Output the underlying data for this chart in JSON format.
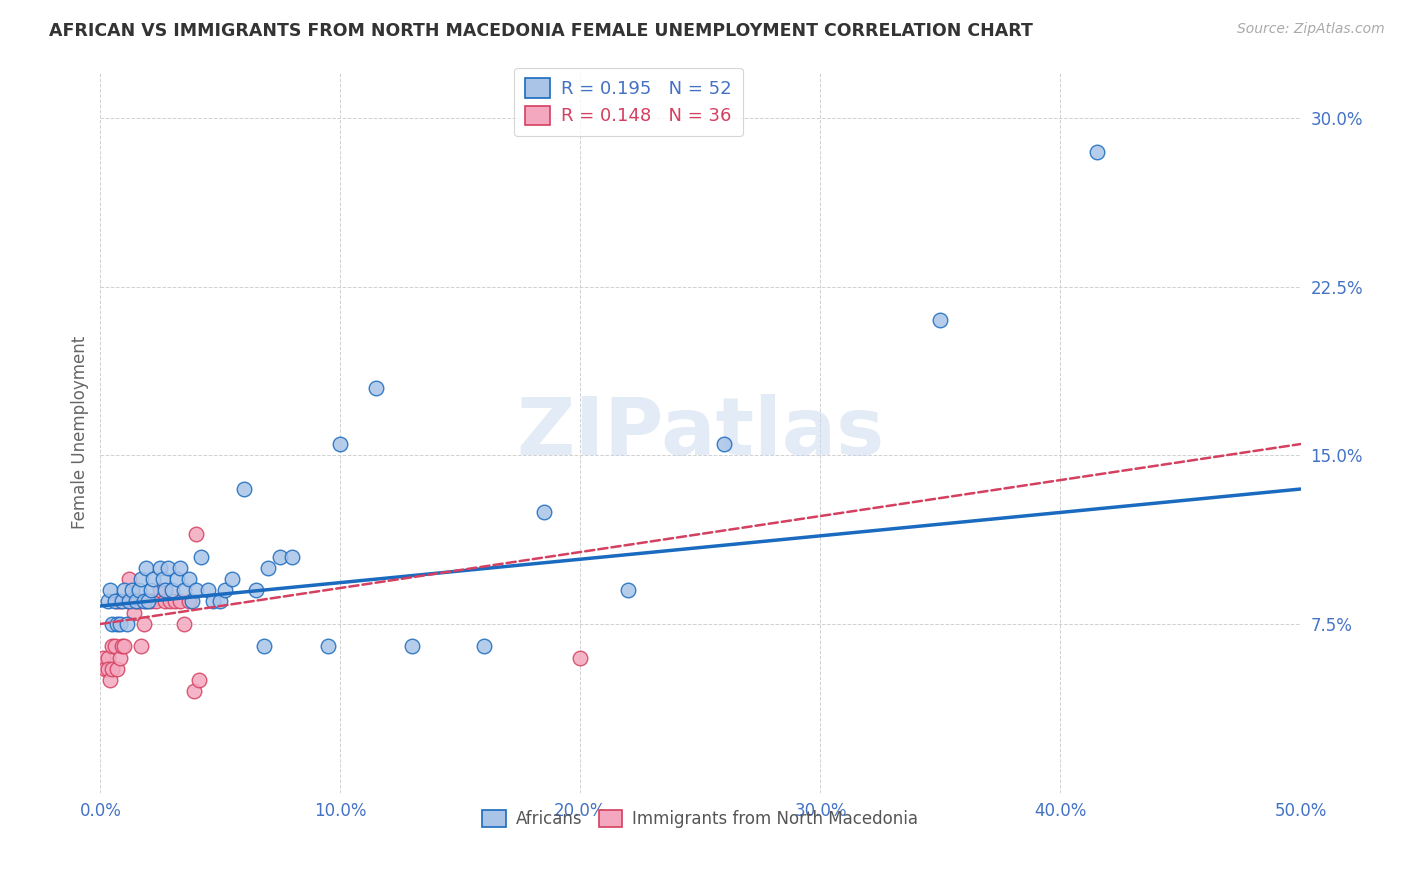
{
  "title": "AFRICAN VS IMMIGRANTS FROM NORTH MACEDONIA FEMALE UNEMPLOYMENT CORRELATION CHART",
  "source": "Source: ZipAtlas.com",
  "ylabel": "Female Unemployment",
  "xlim": [
    0.0,
    0.5
  ],
  "ylim": [
    0.0,
    0.32
  ],
  "yticks": [
    0.075,
    0.15,
    0.225,
    0.3
  ],
  "ytick_labels": [
    "7.5%",
    "15.0%",
    "22.5%",
    "30.0%"
  ],
  "xticks": [
    0.0,
    0.1,
    0.2,
    0.3,
    0.4,
    0.5
  ],
  "xtick_labels": [
    "0.0%",
    "10.0%",
    "20.0%",
    "30.0%",
    "40.0%",
    "50.0%"
  ],
  "african_color": "#aac4e8",
  "macedonian_color": "#f4a8bf",
  "trend_african_color": "#1a6bbf",
  "trend_macedonian_color": "#d44060",
  "R_african": 0.195,
  "N_african": 52,
  "R_macedonian": 0.148,
  "N_macedonian": 36,
  "background_color": "#ffffff",
  "grid_color": "#cccccc",
  "watermark": "ZIPatlas",
  "african_x": [
    0.003,
    0.004,
    0.005,
    0.006,
    0.007,
    0.008,
    0.009,
    0.01,
    0.011,
    0.012,
    0.013,
    0.015,
    0.016,
    0.017,
    0.018,
    0.019,
    0.02,
    0.021,
    0.022,
    0.025,
    0.026,
    0.027,
    0.028,
    0.03,
    0.032,
    0.033,
    0.035,
    0.037,
    0.038,
    0.04,
    0.042,
    0.045,
    0.047,
    0.05,
    0.052,
    0.055,
    0.06,
    0.065,
    0.068,
    0.07,
    0.075,
    0.08,
    0.095,
    0.1,
    0.115,
    0.13,
    0.16,
    0.185,
    0.22,
    0.26,
    0.35,
    0.415
  ],
  "african_y": [
    0.085,
    0.09,
    0.075,
    0.085,
    0.075,
    0.075,
    0.085,
    0.09,
    0.075,
    0.085,
    0.09,
    0.085,
    0.09,
    0.095,
    0.085,
    0.1,
    0.085,
    0.09,
    0.095,
    0.1,
    0.095,
    0.09,
    0.1,
    0.09,
    0.095,
    0.1,
    0.09,
    0.095,
    0.085,
    0.09,
    0.105,
    0.09,
    0.085,
    0.085,
    0.09,
    0.095,
    0.135,
    0.09,
    0.065,
    0.1,
    0.105,
    0.105,
    0.065,
    0.155,
    0.18,
    0.065,
    0.065,
    0.125,
    0.09,
    0.155,
    0.21,
    0.285
  ],
  "macedonian_x": [
    0.001,
    0.002,
    0.003,
    0.003,
    0.004,
    0.005,
    0.005,
    0.006,
    0.007,
    0.007,
    0.008,
    0.008,
    0.009,
    0.01,
    0.011,
    0.012,
    0.013,
    0.014,
    0.015,
    0.016,
    0.017,
    0.018,
    0.019,
    0.021,
    0.023,
    0.025,
    0.027,
    0.029,
    0.031,
    0.033,
    0.035,
    0.037,
    0.039,
    0.041,
    0.2,
    0.04
  ],
  "macedonian_y": [
    0.06,
    0.055,
    0.06,
    0.055,
    0.05,
    0.065,
    0.055,
    0.065,
    0.085,
    0.055,
    0.085,
    0.06,
    0.065,
    0.065,
    0.085,
    0.095,
    0.085,
    0.08,
    0.085,
    0.085,
    0.065,
    0.075,
    0.085,
    0.085,
    0.085,
    0.09,
    0.085,
    0.085,
    0.085,
    0.085,
    0.075,
    0.085,
    0.045,
    0.05,
    0.06,
    0.115
  ],
  "trend_af_x0": 0.0,
  "trend_af_x1": 0.5,
  "trend_af_y0": 0.083,
  "trend_af_y1": 0.135,
  "trend_mac_x0": 0.0,
  "trend_mac_x1": 0.5,
  "trend_mac_y0": 0.075,
  "trend_mac_y1": 0.155
}
